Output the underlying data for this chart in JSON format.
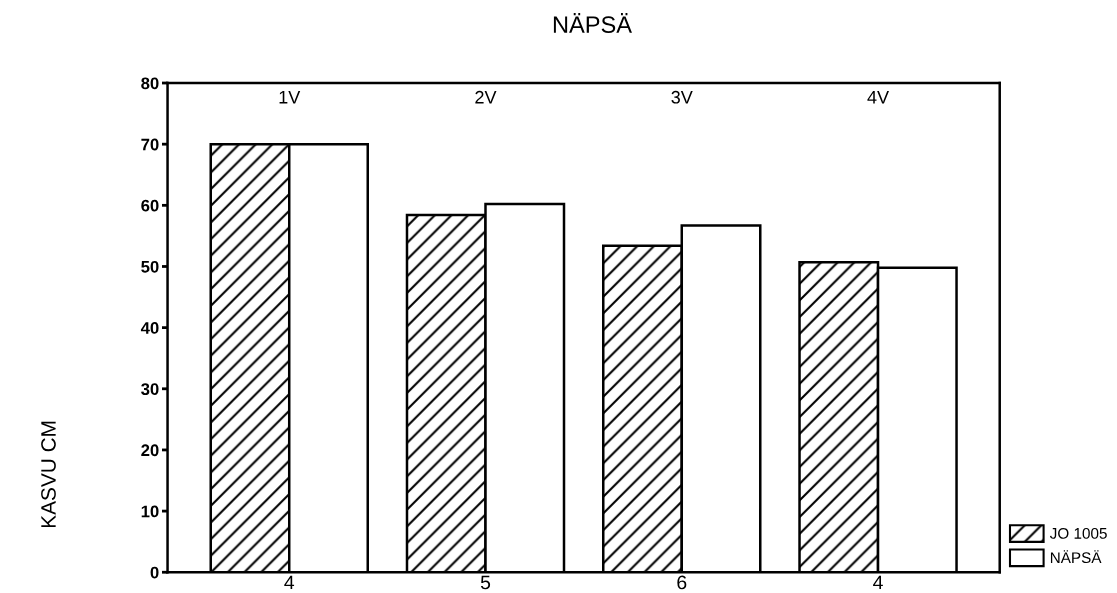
{
  "chart_data": {
    "type": "bar",
    "title": "NÄPSÄ",
    "ylabel": "KASVU CM",
    "categories": [
      "4",
      "5",
      "6",
      "4"
    ],
    "series": [
      {
        "name": "JO 1005",
        "color": "#000000",
        "values": [
          70,
          58.4,
          53.4,
          50.7
        ]
      },
      {
        "name": "NÄPSÄ",
        "color": "#ffffff",
        "values": [
          70,
          60.2,
          56.7,
          49.8
        ]
      }
    ],
    "annotations": [
      "1V",
      "2V",
      "3V",
      "4V"
    ],
    "ylim": [
      0,
      80
    ],
    "yticks": [
      0,
      10,
      20,
      30,
      40,
      50,
      60,
      70,
      80
    ],
    "grid": false,
    "legend": "bottom right"
  }
}
